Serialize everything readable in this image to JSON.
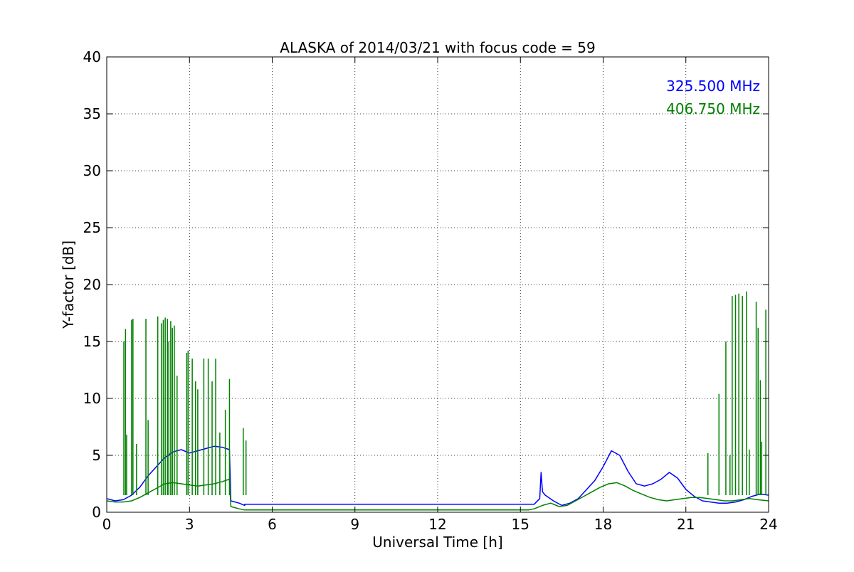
{
  "chart_data": {
    "type": "line",
    "title": "ALASKA of 2014/03/21 with focus code = 59",
    "xlabel": "Universal Time [h]",
    "ylabel": "Y-factor [dB]",
    "xlim": [
      0,
      24
    ],
    "ylim": [
      0,
      40
    ],
    "xticks": [
      0,
      3,
      6,
      9,
      12,
      15,
      18,
      21,
      24
    ],
    "yticks": [
      0,
      5,
      10,
      15,
      20,
      25,
      30,
      35,
      40
    ],
    "grid": true,
    "legend_position": "top-right",
    "series": [
      {
        "name": "325.500 MHz",
        "color": "#0000ff",
        "x": [
          0,
          0.3,
          0.6,
          0.9,
          1.2,
          1.5,
          1.8,
          2.1,
          2.4,
          2.7,
          3.0,
          3.3,
          3.6,
          3.9,
          4.2,
          4.45,
          4.5,
          4.8,
          5.0,
          5.0,
          15.3,
          15.5,
          15.7,
          15.75,
          15.8,
          15.9,
          16.2,
          16.5,
          16.8,
          17.1,
          17.4,
          17.7,
          18.0,
          18.3,
          18.6,
          18.9,
          19.2,
          19.5,
          19.8,
          20.1,
          20.4,
          20.7,
          21.0,
          21.3,
          21.6,
          21.9,
          22.2,
          22.5,
          22.8,
          23.1,
          23.4,
          23.7,
          24.0
        ],
        "values": [
          1.2,
          1.0,
          1.1,
          1.5,
          2.2,
          3.2,
          4.0,
          4.8,
          5.3,
          5.5,
          5.2,
          5.4,
          5.6,
          5.8,
          5.7,
          5.5,
          1.0,
          0.8,
          0.6,
          0.7,
          0.7,
          0.7,
          1.2,
          3.5,
          1.8,
          1.5,
          1.0,
          0.6,
          0.8,
          1.2,
          2.0,
          2.8,
          4.0,
          5.4,
          5.0,
          3.6,
          2.5,
          2.3,
          2.5,
          2.9,
          3.5,
          3.0,
          2.0,
          1.4,
          1.0,
          0.9,
          0.8,
          0.8,
          0.9,
          1.1,
          1.4,
          1.6,
          1.5
        ]
      },
      {
        "name": "406.750 MHz",
        "color": "#008000",
        "x": [
          0,
          0.3,
          0.6,
          0.9,
          1.2,
          1.5,
          1.8,
          2.1,
          2.4,
          2.7,
          3.0,
          3.3,
          3.6,
          3.9,
          4.2,
          4.45,
          4.5,
          4.8,
          5.0,
          5.0,
          15.3,
          15.5,
          15.8,
          16.1,
          16.4,
          16.7,
          17.0,
          17.3,
          17.6,
          17.9,
          18.2,
          18.5,
          18.8,
          19.1,
          19.4,
          19.7,
          20.0,
          20.3,
          20.6,
          20.9,
          21.2,
          21.5,
          21.8,
          22.1,
          22.4,
          22.7,
          23.0,
          23.3,
          23.6,
          24.0
        ],
        "values": [
          1.0,
          0.9,
          0.9,
          1.0,
          1.3,
          1.7,
          2.1,
          2.5,
          2.6,
          2.5,
          2.4,
          2.3,
          2.4,
          2.5,
          2.7,
          2.9,
          0.5,
          0.3,
          0.2,
          0.2,
          0.2,
          0.3,
          0.6,
          0.8,
          0.5,
          0.6,
          1.0,
          1.4,
          1.8,
          2.2,
          2.5,
          2.6,
          2.3,
          1.9,
          1.6,
          1.3,
          1.1,
          1.0,
          1.1,
          1.2,
          1.3,
          1.3,
          1.2,
          1.1,
          1.0,
          1.0,
          1.1,
          1.2,
          1.1,
          1.0
        ],
        "spikes": [
          [
            0.62,
            15.0
          ],
          [
            0.68,
            16.1
          ],
          [
            0.72,
            6.8
          ],
          [
            0.9,
            16.9
          ],
          [
            0.95,
            17.0
          ],
          [
            1.08,
            6.0
          ],
          [
            1.42,
            17.0
          ],
          [
            1.5,
            8.1
          ],
          [
            1.85,
            17.2
          ],
          [
            1.98,
            16.6
          ],
          [
            2.05,
            16.9
          ],
          [
            2.12,
            17.1
          ],
          [
            2.2,
            17.0
          ],
          [
            2.25,
            15.0
          ],
          [
            2.32,
            16.8
          ],
          [
            2.38,
            16.2
          ],
          [
            2.45,
            16.4
          ],
          [
            2.55,
            12.0
          ],
          [
            2.9,
            14.0
          ],
          [
            2.95,
            14.2
          ],
          [
            3.1,
            13.5
          ],
          [
            3.22,
            11.5
          ],
          [
            3.3,
            10.8
          ],
          [
            3.52,
            13.5
          ],
          [
            3.68,
            13.5
          ],
          [
            3.82,
            11.5
          ],
          [
            3.95,
            13.5
          ],
          [
            4.1,
            7.0
          ],
          [
            4.3,
            9.0
          ],
          [
            4.45,
            11.7
          ],
          [
            4.95,
            7.4
          ],
          [
            5.05,
            6.3
          ],
          [
            21.8,
            5.2
          ],
          [
            22.2,
            10.4
          ],
          [
            22.45,
            15.0
          ],
          [
            22.6,
            5.0
          ],
          [
            22.68,
            19.0
          ],
          [
            22.8,
            19.1
          ],
          [
            22.92,
            19.2
          ],
          [
            23.05,
            19.0
          ],
          [
            23.2,
            19.4
          ],
          [
            23.3,
            5.5
          ],
          [
            23.55,
            18.5
          ],
          [
            23.62,
            16.2
          ],
          [
            23.7,
            11.6
          ],
          [
            23.75,
            6.2
          ],
          [
            23.9,
            17.8
          ]
        ]
      }
    ]
  }
}
